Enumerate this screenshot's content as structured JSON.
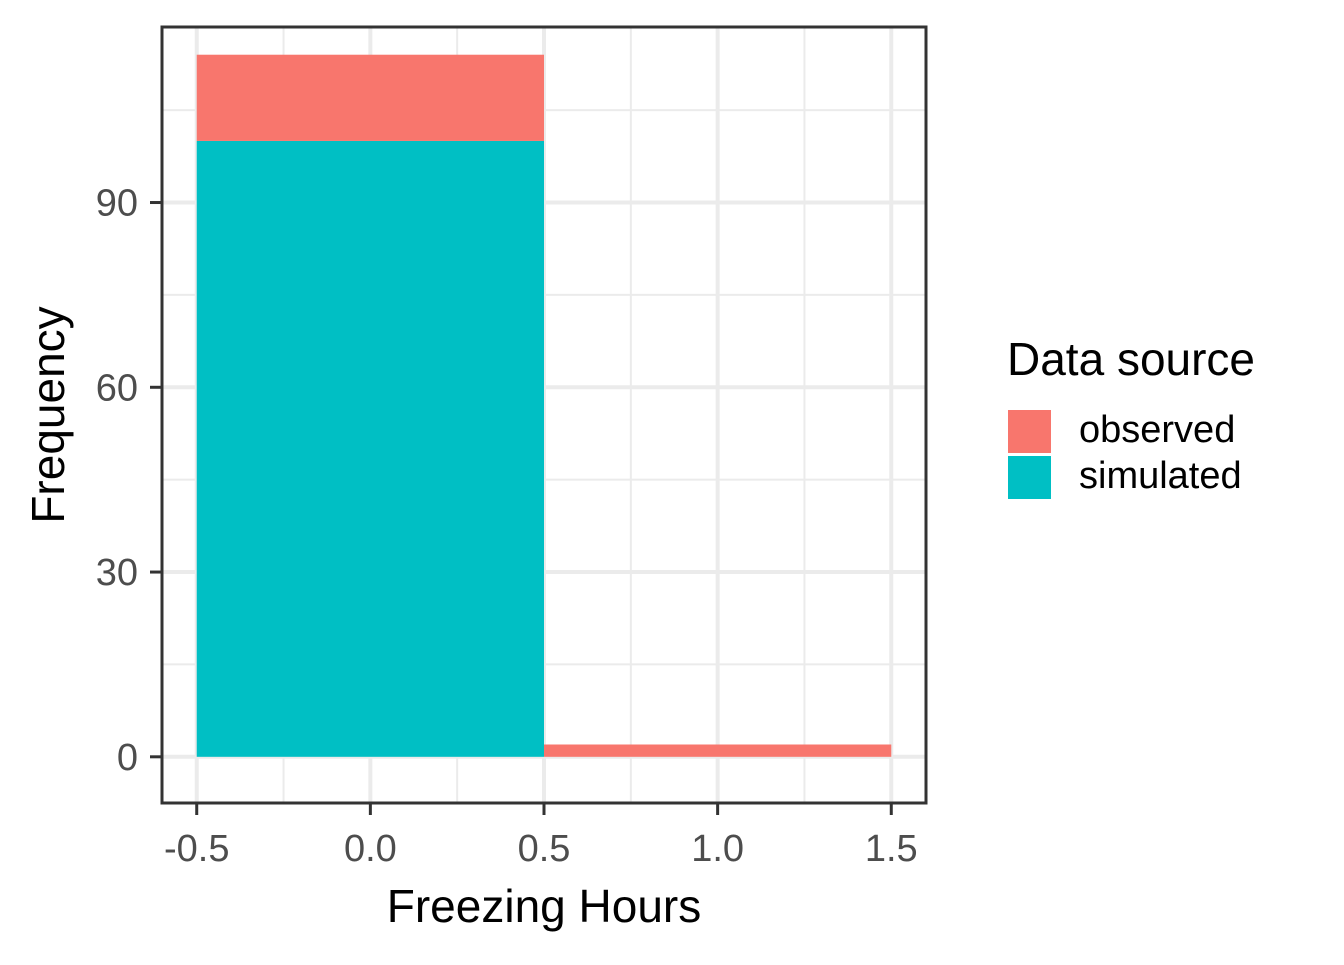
{
  "chart_data": {
    "type": "bar",
    "subtype": "stacked-histogram",
    "xlabel": "Freezing Hours",
    "ylabel": "Frequency",
    "xlim": [
      -0.6,
      1.6
    ],
    "ylim": [
      -7.5,
      118.5
    ],
    "x_ticks": [
      -0.5,
      0.0,
      0.5,
      1.0,
      1.5
    ],
    "x_tick_labels": [
      "-0.5",
      "0.0",
      "0.5",
      "1.0",
      "1.5"
    ],
    "x_minor": [
      -0.25,
      0.25,
      0.75,
      1.25
    ],
    "y_ticks": [
      0,
      30,
      60,
      90
    ],
    "y_tick_labels": [
      "0",
      "30",
      "60",
      "90"
    ],
    "y_minor": [
      15,
      45,
      75,
      105
    ],
    "bins": [
      {
        "x_start": -0.5,
        "x_end": 0.5,
        "simulated": 100,
        "observed": 14
      },
      {
        "x_start": 0.5,
        "x_end": 1.5,
        "simulated": 0,
        "observed": 2
      }
    ],
    "series": [
      {
        "name": "observed",
        "color": "#F8766D",
        "values": [
          14,
          2
        ]
      },
      {
        "name": "simulated",
        "color": "#00BFC4",
        "values": [
          100,
          0
        ]
      }
    ],
    "legend": {
      "title": "Data source",
      "position": "right",
      "entries": [
        {
          "label": "observed",
          "color": "#F8766D"
        },
        {
          "label": "simulated",
          "color": "#00BFC4"
        }
      ]
    },
    "grid": true,
    "background": "#FFFFFF",
    "panel_border_color": "#333333"
  }
}
